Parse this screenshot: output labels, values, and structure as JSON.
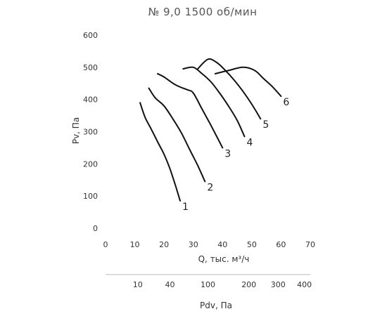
{
  "chart_data": {
    "type": "line",
    "title": "№ 9,0 1500 об/мин",
    "xlabel": "Q, тыс. м³/ч",
    "ylabel": "Pv, Па",
    "xlim": [
      0,
      70
    ],
    "ylim": [
      0,
      600
    ],
    "x_ticks": [
      0,
      10,
      20,
      30,
      40,
      50,
      60,
      70
    ],
    "y_ticks": [
      0,
      100,
      200,
      300,
      400,
      500,
      600
    ],
    "secondary_axis": {
      "label": "Pdv, Па",
      "ticks": [
        {
          "value": 10,
          "q": 11
        },
        {
          "value": 40,
          "q": 22
        },
        {
          "value": 100,
          "q": 35
        },
        {
          "value": 200,
          "q": 49
        },
        {
          "value": 300,
          "q": 59
        },
        {
          "value": 400,
          "q": 68
        }
      ]
    },
    "grid": false,
    "series": [
      {
        "name": "1",
        "points": [
          [
            11.8,
            390
          ],
          [
            13.5,
            345
          ],
          [
            15.5,
            310
          ],
          [
            18,
            265
          ],
          [
            20,
            230
          ],
          [
            22,
            185
          ],
          [
            24,
            130
          ],
          [
            25.5,
            85
          ]
        ]
      },
      {
        "name": "2",
        "points": [
          [
            14.8,
            435
          ],
          [
            17,
            405
          ],
          [
            20,
            380
          ],
          [
            23,
            340
          ],
          [
            26,
            295
          ],
          [
            29,
            240
          ],
          [
            31.5,
            195
          ],
          [
            34,
            145
          ]
        ]
      },
      {
        "name": "3",
        "points": [
          [
            17.8,
            480
          ],
          [
            20,
            470
          ],
          [
            24,
            445
          ],
          [
            28,
            430
          ],
          [
            30,
            420
          ],
          [
            33,
            370
          ],
          [
            36,
            320
          ],
          [
            40,
            250
          ]
        ]
      },
      {
        "name": "4",
        "points": [
          [
            26.5,
            495
          ],
          [
            30,
            500
          ],
          [
            33,
            480
          ],
          [
            36,
            455
          ],
          [
            39,
            420
          ],
          [
            42,
            380
          ],
          [
            45,
            335
          ],
          [
            47.5,
            285
          ]
        ]
      },
      {
        "name": "5",
        "points": [
          [
            31.5,
            495
          ],
          [
            35,
            525
          ],
          [
            38,
            515
          ],
          [
            41,
            490
          ],
          [
            44,
            460
          ],
          [
            47,
            425
          ],
          [
            50,
            385
          ],
          [
            53,
            340
          ]
        ]
      },
      {
        "name": "6",
        "points": [
          [
            37.5,
            480
          ],
          [
            42,
            490
          ],
          [
            47,
            500
          ],
          [
            51,
            490
          ],
          [
            54,
            465
          ],
          [
            57,
            440
          ],
          [
            60,
            410
          ]
        ]
      }
    ]
  }
}
